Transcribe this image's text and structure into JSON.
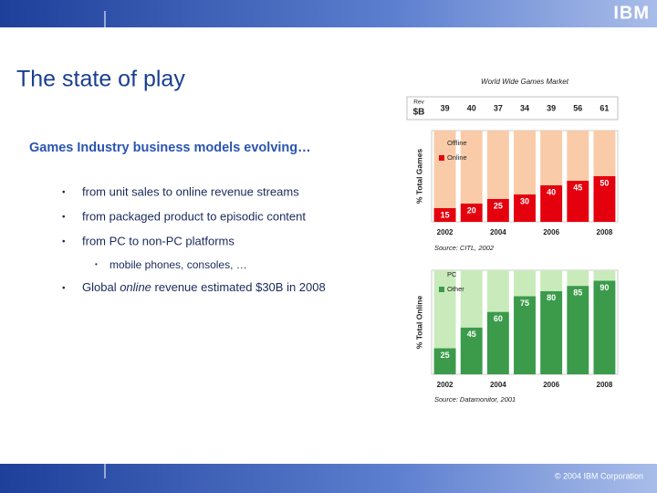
{
  "header": {
    "logo": "IBM",
    "title": "The state of play"
  },
  "body": {
    "heading": "Games Industry business models evolving…",
    "bullets": [
      "from unit sales to online revenue streams",
      "from packaged product to episodic content",
      "from PC to non-PC platforms"
    ],
    "sub_bullet": "mobile phones, consoles, …",
    "last_bullet": [
      "Global",
      "online",
      "revenue estimated $30B in 2008"
    ]
  },
  "footer": {
    "copyright": "© 2004 IBM Corporation"
  },
  "chart_data": [
    {
      "type": "stacked_bar",
      "title": "World Wide Games Market",
      "y_label": "% Total Games",
      "revenue": {
        "label": "Rev",
        "unit": "$B",
        "values": [
          39,
          40,
          37,
          34,
          39,
          56,
          61
        ]
      },
      "categories": [
        "2002",
        null,
        "2004",
        null,
        "2006",
        null,
        "2008"
      ],
      "series": [
        {
          "name": "Offline",
          "color": "#f9cba8",
          "values": [
            85,
            80,
            75,
            70,
            60,
            55,
            50
          ]
        },
        {
          "name": "Online",
          "color": "#e5000e",
          "values": [
            15,
            20,
            25,
            30,
            40,
            45,
            50
          ]
        }
      ],
      "ylim": [
        0,
        100
      ],
      "source": "Source: CITL, 2002"
    },
    {
      "type": "stacked_bar",
      "y_label": "% Total Online",
      "categories": [
        "2002",
        null,
        "2004",
        null,
        "2006",
        null,
        "2008"
      ],
      "series": [
        {
          "name": "PC",
          "color": "#c9ebbb",
          "values": [
            75,
            55,
            40,
            25,
            20,
            15,
            10
          ]
        },
        {
          "name": "Other",
          "color": "#3b9b4b",
          "values": [
            25,
            45,
            60,
            75,
            80,
            85,
            90
          ]
        }
      ],
      "ylim": [
        0,
        100
      ],
      "source": "Source: Datamonitor, 2001"
    }
  ]
}
